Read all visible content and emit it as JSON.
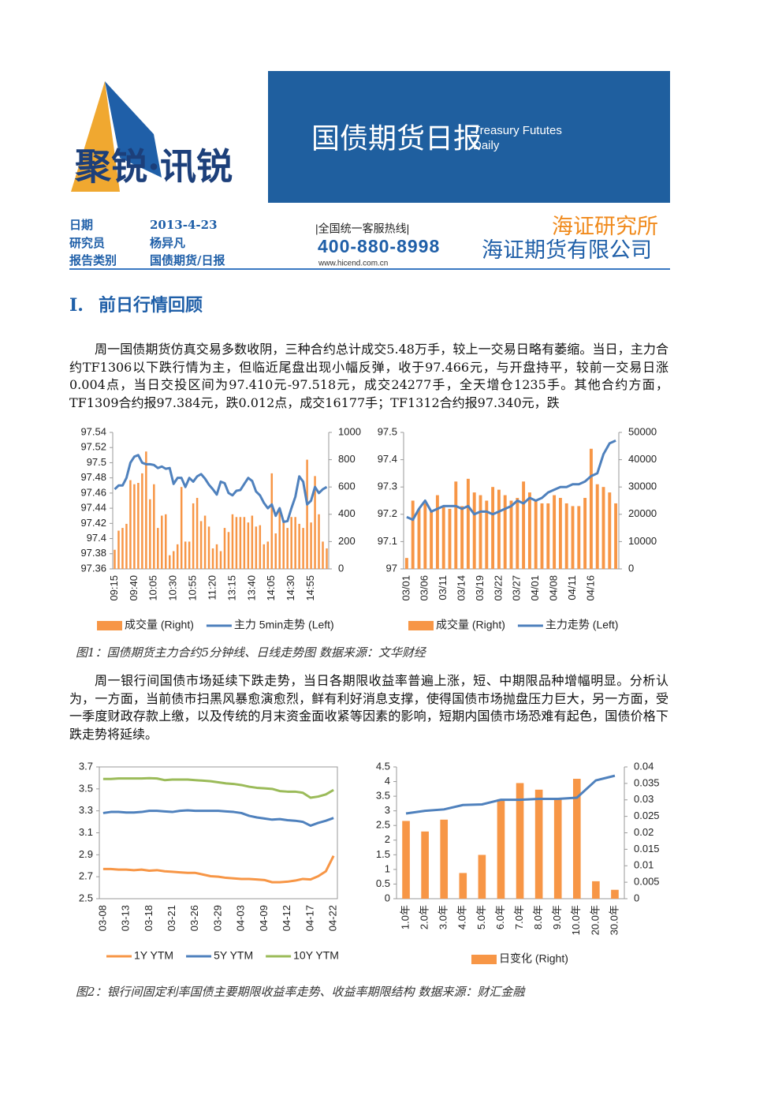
{
  "header": {
    "logo": "聚锐·讯锐",
    "banner_title": "国债期货日报",
    "banner_en_1": "Treasury Fututes",
    "banner_en_2": "Daily",
    "info": [
      {
        "label": "日期",
        "value": "2013-4-23"
      },
      {
        "label": "研究员",
        "value": "杨异凡"
      },
      {
        "label": "报告类别",
        "value": "国债期货/日报"
      }
    ],
    "hotline_label": "|全国统一客服热线|",
    "hotline": "400-880-8998",
    "website": "www.hicend.com.cn",
    "institute": "海证研究所",
    "company": "海证期货有限公司"
  },
  "section": {
    "number": "I.",
    "title": "前日行情回顾"
  },
  "paragraphs": [
    "周一国债期货仿真交易多数收阴，三种合约总计成交5.48万手，较上一交易日略有萎缩。当日，主力合约TF1306以下跌行情为主，但临近尾盘出现小幅反弹，收于97.466元，与开盘持平，较前一交易日涨0.004点，当日交投区间为97.410元-97.518元，成交24277手，全天增仓1235手。其他合约方面，TF1309合约报97.384元，跌0.012点，成交16177手；TF1312合约报97.340元，跌",
    "周一银行间国债市场延续下跌走势，当日各期限收益率普遍上涨，短、中期限品种增幅明显。分析认为，一方面，当前债市扫黑风暴愈演愈烈，鲜有利好消息支撑，使得国债市场抛盘压力巨大，另一方面，受一季度财政存款上缴，以及传统的月末资金面收紧等因素的影响，短期内国债市场恐难有起色，国债价格下跌走势将延续。"
  ],
  "captions": [
    "图1：国债期货主力合约5分钟线、日线走势图 数据来源：文华财经",
    "图2：银行间固定利率国债主要期限收益率走势、收益率期限结构 数据来源：财汇金融"
  ],
  "chart_data": [
    {
      "type": "combo",
      "categories": [
        "09:15",
        null,
        null,
        null,
        null,
        "09:40",
        null,
        null,
        null,
        null,
        "10:05",
        null,
        null,
        null,
        null,
        "10:30",
        null,
        null,
        null,
        null,
        "10:55",
        null,
        null,
        null,
        null,
        "11:20",
        null,
        null,
        null,
        null,
        "13:15",
        null,
        null,
        null,
        null,
        "13:40",
        null,
        null,
        null,
        null,
        "14:05",
        null,
        null,
        null,
        null,
        "14:30",
        null,
        null,
        null,
        null,
        "14:55",
        null,
        null,
        null,
        null
      ],
      "series": [
        {
          "name": "成交量 (Right)",
          "type": "bar",
          "axis": "y2",
          "color": "#f79646",
          "values": [
            140,
            280,
            300,
            330,
            650,
            620,
            630,
            700,
            860,
            510,
            620,
            300,
            390,
            400,
            100,
            130,
            180,
            600,
            200,
            200,
            480,
            520,
            350,
            390,
            310,
            150,
            180,
            130,
            300,
            270,
            400,
            380,
            380,
            380,
            340,
            390,
            310,
            320,
            180,
            200,
            700,
            260,
            440,
            350,
            300,
            380,
            380,
            330,
            300,
            800,
            340,
            680,
            400,
            200,
            150
          ]
        },
        {
          "name": "主力 5min走势 (Left)",
          "type": "line",
          "color": "#4f81bd",
          "values": [
            97.465,
            97.47,
            97.47,
            97.48,
            97.5,
            97.508,
            97.51,
            97.5,
            97.498,
            97.498,
            97.497,
            97.493,
            97.495,
            97.492,
            97.493,
            97.472,
            97.48,
            97.48,
            97.468,
            97.48,
            97.475,
            97.482,
            97.485,
            97.479,
            97.471,
            97.465,
            97.458,
            97.475,
            97.473,
            97.46,
            97.457,
            97.463,
            97.464,
            97.472,
            97.48,
            97.476,
            97.462,
            97.457,
            97.447,
            97.44,
            97.445,
            97.43,
            97.44,
            97.422,
            97.423,
            97.44,
            97.455,
            97.482,
            97.475,
            97.445,
            97.45,
            97.468,
            97.46,
            97.465,
            97.468
          ]
        }
      ],
      "ylim": [
        97.36,
        97.54
      ],
      "yticks": [
        97.36,
        97.38,
        97.4,
        97.42,
        97.44,
        97.46,
        97.48,
        97.5,
        97.52,
        97.54
      ],
      "y2lim": [
        0,
        1000
      ],
      "y2ticks": [
        0,
        200,
        400,
        600,
        800,
        1000
      ],
      "grid": false
    },
    {
      "type": "combo",
      "categories": [
        "03/01",
        null,
        null,
        "03/06",
        null,
        null,
        "03/11",
        null,
        null,
        "03/14",
        null,
        null,
        "03/19",
        null,
        null,
        "03/22",
        null,
        null,
        "03/27",
        null,
        null,
        "04/01",
        null,
        null,
        "04/08",
        null,
        null,
        "04/11",
        null,
        null,
        "04/16",
        null,
        null,
        null,
        null
      ],
      "series": [
        {
          "name": "成交量 (Right)",
          "type": "bar",
          "axis": "y2",
          "color": "#f79646",
          "values": [
            4000,
            25000,
            22000,
            24000,
            21000,
            27000,
            23000,
            22000,
            32000,
            23000,
            33000,
            28000,
            27000,
            25000,
            30000,
            29000,
            27000,
            25000,
            26000,
            32000,
            28000,
            25000,
            24000,
            24000,
            27000,
            26000,
            24000,
            23000,
            23000,
            26000,
            44000,
            31000,
            30000,
            28000,
            24000
          ]
        },
        {
          "name": "主力走势 (Left)",
          "type": "line",
          "color": "#4f81bd",
          "values": [
            97.19,
            97.18,
            97.22,
            97.25,
            97.21,
            97.22,
            97.23,
            97.23,
            97.23,
            97.22,
            97.23,
            97.2,
            97.21,
            97.21,
            97.2,
            97.21,
            97.22,
            97.23,
            97.25,
            97.24,
            97.26,
            97.25,
            97.26,
            97.28,
            97.29,
            97.3,
            97.3,
            97.31,
            97.31,
            97.32,
            97.34,
            97.35,
            97.42,
            97.46,
            97.47
          ]
        }
      ],
      "ylim": [
        97,
        97.5
      ],
      "yticks": [
        97,
        97.1,
        97.2,
        97.3,
        97.4,
        97.5
      ],
      "y2lim": [
        0,
        50000
      ],
      "y2ticks": [
        0,
        10000,
        20000,
        30000,
        40000,
        50000
      ],
      "grid": false
    },
    {
      "type": "line",
      "categories": [
        "03-08",
        null,
        null,
        "03-13",
        null,
        null,
        "03-18",
        null,
        null,
        "03-21",
        null,
        null,
        "03-26",
        null,
        null,
        "03-29",
        null,
        null,
        "04-03",
        null,
        null,
        "04-09",
        null,
        null,
        "04-12",
        null,
        null,
        "04-17",
        null,
        null,
        "04-22"
      ],
      "series": [
        {
          "name": "1Y YTM",
          "type": "line",
          "color": "#f79646",
          "values": [
            2.77,
            2.77,
            2.765,
            2.765,
            2.76,
            2.765,
            2.755,
            2.76,
            2.75,
            2.745,
            2.74,
            2.735,
            2.735,
            2.72,
            2.705,
            2.7,
            2.69,
            2.685,
            2.68,
            2.68,
            2.675,
            2.67,
            2.65,
            2.65,
            2.655,
            2.665,
            2.68,
            2.675,
            2.705,
            2.75,
            2.89
          ]
        },
        {
          "name": "5Y YTM",
          "type": "line",
          "color": "#4f81bd",
          "values": [
            3.28,
            3.29,
            3.29,
            3.285,
            3.285,
            3.29,
            3.3,
            3.3,
            3.295,
            3.29,
            3.3,
            3.305,
            3.3,
            3.3,
            3.3,
            3.3,
            3.295,
            3.29,
            3.28,
            3.255,
            3.24,
            3.23,
            3.22,
            3.225,
            3.215,
            3.21,
            3.2,
            3.165,
            3.19,
            3.21,
            3.235
          ]
        },
        {
          "name": "10Y YTM",
          "type": "line",
          "color": "#9bbb59",
          "values": [
            3.59,
            3.59,
            3.595,
            3.595,
            3.595,
            3.595,
            3.598,
            3.595,
            3.58,
            3.585,
            3.585,
            3.585,
            3.58,
            3.575,
            3.57,
            3.56,
            3.55,
            3.545,
            3.535,
            3.52,
            3.51,
            3.505,
            3.5,
            3.48,
            3.475,
            3.475,
            3.465,
            3.42,
            3.43,
            3.45,
            3.49
          ]
        }
      ],
      "ylim": [
        2.5,
        3.7
      ],
      "yticks": [
        2.5,
        2.7,
        2.9,
        3.1,
        3.3,
        3.5,
        3.7
      ],
      "grid": false
    },
    {
      "type": "combo",
      "categories": [
        "1.0年",
        "2.0年",
        "3.0年",
        "4.0年",
        "5.0年",
        "6.0年",
        "7.0年",
        "8.0年",
        "9.0年",
        "10.0年",
        "20.0年",
        "30.0年"
      ],
      "series": [
        {
          "name": "日变化 (Right)",
          "type": "bar",
          "axis": "y2",
          "color": "#f79646",
          "values": [
            0.0236,
            0.0204,
            0.024,
            0.0078,
            0.0133,
            0.0302,
            0.0351,
            0.0331,
            0.0302,
            0.0364,
            0.0053,
            0.0027
          ]
        },
        {
          "type": "line",
          "color": "#4f81bd",
          "values": [
            2.91,
            3.0,
            3.05,
            3.2,
            3.22,
            3.38,
            3.38,
            3.41,
            3.41,
            3.45,
            4.04,
            4.2
          ]
        }
      ],
      "ylim": [
        0,
        4.5
      ],
      "yticks": [
        0,
        0.5,
        1,
        1.5,
        2,
        2.5,
        3,
        3.5,
        4,
        4.5
      ],
      "y2lim": [
        0,
        0.04
      ],
      "y2ticks": [
        0,
        0.005,
        0.01,
        0.015,
        0.02,
        0.025,
        0.03,
        0.035,
        0.04
      ],
      "grid": false
    }
  ]
}
